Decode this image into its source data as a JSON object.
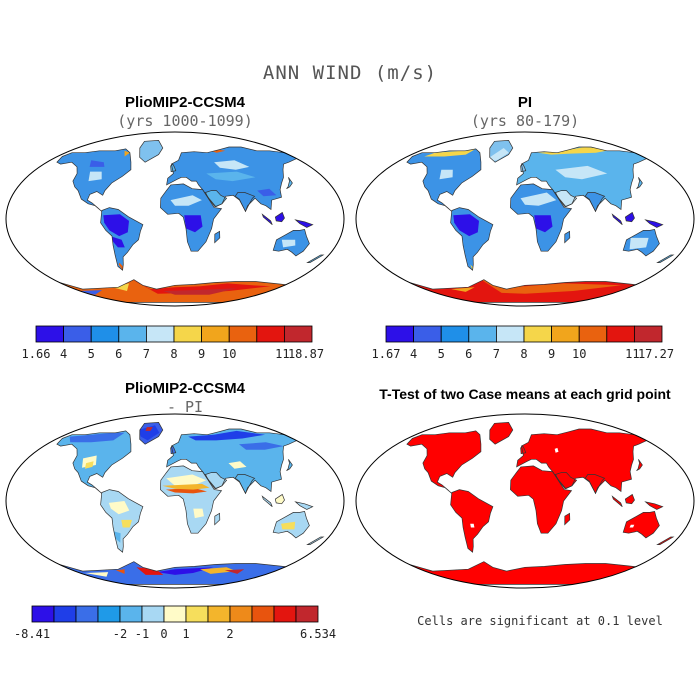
{
  "figure": {
    "title": "ANN WIND (m/s)"
  },
  "panels": [
    {
      "id": "plio",
      "title": "PlioMIP2-CCSM4",
      "subtitle": "(yrs 1000-1099)",
      "colorbar": {
        "colors": [
          "#2d10e8",
          "#3a5ee8",
          "#1f8fe8",
          "#5ab4ec",
          "#c6e6f7",
          "#f5d64a",
          "#f1a51c",
          "#e9620f",
          "#e3150f",
          "#c1272d"
        ],
        "labels": [
          "1.66",
          "4",
          "5",
          "6",
          "7",
          "8",
          "9",
          "10",
          "11",
          "18.87"
        ]
      }
    },
    {
      "id": "pi",
      "title": "PI",
      "subtitle": "(yrs 80-179)",
      "colorbar": {
        "colors": [
          "#2d10e8",
          "#3a5ee8",
          "#1f8fe8",
          "#5ab4ec",
          "#c6e6f7",
          "#f5d64a",
          "#f1a51c",
          "#e9620f",
          "#e3150f",
          "#c1272d"
        ],
        "labels": [
          "1.67",
          "4",
          "5",
          "6",
          "7",
          "8",
          "9",
          "10",
          "11",
          "17.27"
        ]
      }
    },
    {
      "id": "diff",
      "title": "PlioMIP2-CCSM4",
      "subtitle": "- PI",
      "colorbar": {
        "colors": [
          "#2d10e8",
          "#1f3ee8",
          "#3a6ee8",
          "#1f9ae8",
          "#5ab4ec",
          "#a8d8f3",
          "#fffbc8",
          "#f6de5c",
          "#f3b52c",
          "#ee8a1a",
          "#e8540e",
          "#e3150f",
          "#c1272d"
        ],
        "labels": [
          "-8.41",
          "-2",
          "-1",
          "0",
          "1",
          "2",
          "6.534"
        ]
      }
    },
    {
      "id": "ttest",
      "title": "T-Test of two Case means at each grid point",
      "subtitle": ""
    }
  ],
  "note": "Cells are significant at 0.1 level",
  "colors": {
    "ocean": "#ffffff",
    "coast": "#333333",
    "significant": "#ff0000"
  }
}
